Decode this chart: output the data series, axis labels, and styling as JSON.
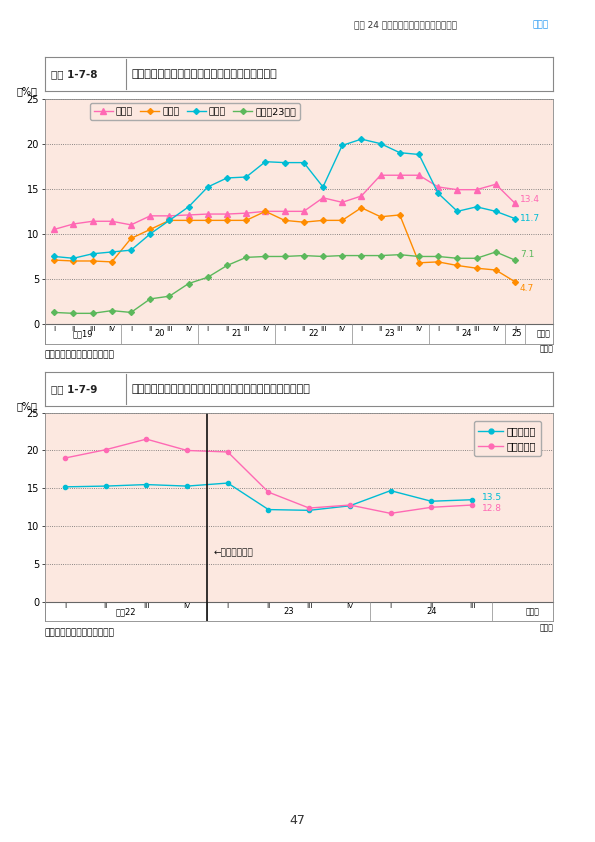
{
  "page_bg": "#ffffff",
  "chart_bg": "#fce8e0",
  "header_text": "平成 24 年度の地価・土地取引等の動向",
  "chapter_label": "第１章",
  "chart1": {
    "title_box": "図表 1-7-8",
    "title_text": "仙台市、盛岡市、郡山市のオフィスビルの空室率",
    "ylabel": "（%）",
    "ylim": [
      0,
      25
    ],
    "yticks": [
      0,
      5,
      10,
      15,
      20,
      25
    ],
    "source": "資料：シービーアールイー㈱",
    "legend": [
      "盛岡市",
      "郡山市",
      "仙台市",
      "東京（23区）"
    ],
    "line_colors": [
      "#ff69b4",
      "#ff8c00",
      "#00bcd4",
      "#5cb85c"
    ],
    "end_labels": [
      "13.4",
      "11.7",
      "7.1",
      "4.7"
    ],
    "morioka": [
      10.5,
      11.1,
      11.4,
      11.4,
      11.0,
      12.0,
      12.0,
      12.1,
      12.2,
      12.2,
      12.3,
      12.5,
      12.5,
      12.5,
      14.0,
      13.5,
      14.2,
      16.5,
      16.5,
      16.5,
      15.2,
      14.9,
      14.9,
      15.5,
      13.4
    ],
    "koriyama": [
      7.1,
      7.0,
      7.0,
      6.9,
      9.5,
      10.5,
      11.5,
      11.5,
      11.5,
      11.5,
      11.5,
      12.5,
      11.5,
      11.3,
      11.5,
      11.5,
      12.9,
      11.9,
      12.1,
      6.8,
      6.9,
      6.5,
      6.2,
      6.0,
      4.7
    ],
    "sendai": [
      7.5,
      7.3,
      7.8,
      8.0,
      8.2,
      10.0,
      11.5,
      13.0,
      15.2,
      16.2,
      16.3,
      18.0,
      17.9,
      17.9,
      15.2,
      19.8,
      20.5,
      20.0,
      19.0,
      18.8,
      14.5,
      12.5,
      13.0,
      12.5,
      11.7
    ],
    "tokyo": [
      1.3,
      1.2,
      1.2,
      1.5,
      1.3,
      2.8,
      3.1,
      4.5,
      5.2,
      6.5,
      7.4,
      7.5,
      7.5,
      7.6,
      7.5,
      7.6,
      7.6,
      7.6,
      7.7,
      7.5,
      7.5,
      7.3,
      7.3,
      8.0,
      7.1
    ],
    "year_groups": [
      [
        1,
        4,
        "平成19"
      ],
      [
        5,
        8,
        "20"
      ],
      [
        9,
        12,
        "21"
      ],
      [
        13,
        16,
        "22"
      ],
      [
        17,
        20,
        "23"
      ],
      [
        21,
        24,
        "24"
      ],
      [
        25,
        25,
        "25"
      ]
    ]
  },
  "chart2": {
    "title_box": "図表 1-7-9",
    "title_text": "仙台市における新耐震・旧耐震オフィスビルの空室率の推移",
    "ylabel": "（%）",
    "ylim": [
      0,
      25
    ],
    "yticks": [
      0,
      5,
      10,
      15,
      20,
      25
    ],
    "source": "資料：シービーアールイー㈱",
    "legend": [
      "旧耐震ビル",
      "新耐震ビル"
    ],
    "line_colors": [
      "#00bcd4",
      "#ff69b4"
    ],
    "end_labels": [
      "13.5",
      "12.8"
    ],
    "vline_label": "←東日本大震災",
    "vline_x": 4.5,
    "kyushin": [
      15.2,
      15.3,
      15.5,
      15.3,
      15.7,
      12.2,
      12.1,
      12.7,
      14.7,
      13.3,
      13.5
    ],
    "shinshin": [
      19.0,
      20.1,
      21.5,
      20.0,
      19.8,
      14.5,
      12.4,
      12.8,
      11.7,
      12.5,
      12.8
    ],
    "year_groups": [
      [
        1,
        4,
        "平成22"
      ],
      [
        5,
        8,
        "23"
      ],
      [
        9,
        11,
        "24"
      ]
    ]
  }
}
